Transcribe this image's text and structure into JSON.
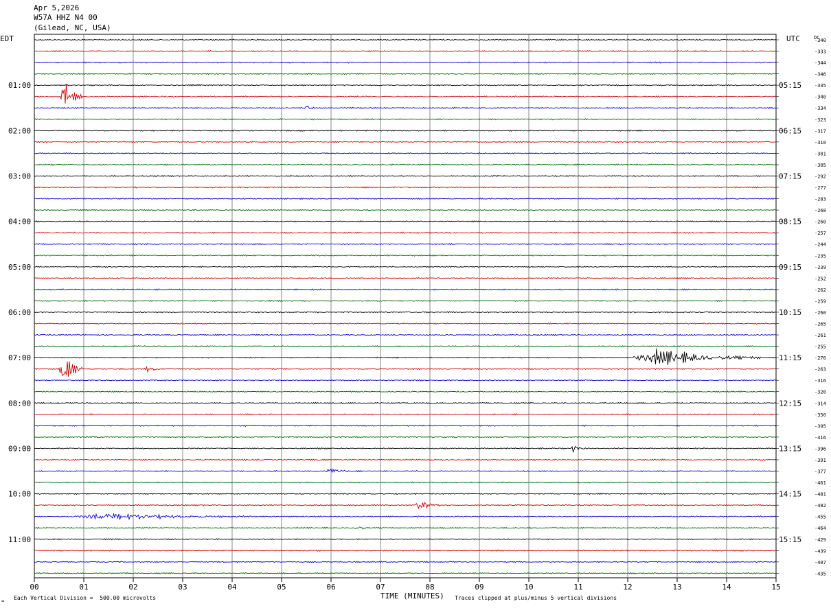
{
  "header": {
    "date": "Apr 5,2026",
    "station": "W57A HHZ N4 00",
    "location": "(Gilead, NC, USA)"
  },
  "left_axis_label": "EDT",
  "right_axis_label": "UTC",
  "dc_label": "DC",
  "footer": {
    "left": "Each Vertical Division =  500.00 microvolts",
    "right": "Traces clipped at plus/minus 5 vertical divisions",
    "corner": "≈"
  },
  "chart_data": {
    "type": "line",
    "xlabel": "TIME (MINUTES)",
    "xlim": [
      0,
      15
    ],
    "x_ticks": [
      "00",
      "01",
      "02",
      "03",
      "04",
      "05",
      "06",
      "07",
      "08",
      "09",
      "10",
      "11",
      "12",
      "13",
      "14",
      "15"
    ],
    "trace_colors": [
      "#000000",
      "#cc0000",
      "#0000cc",
      "#006400"
    ],
    "rows": 48,
    "left_hour_labels": [
      "01:00",
      "02:00",
      "03:00",
      "04:00",
      "05:00",
      "06:00",
      "07:00",
      "08:00",
      "09:00",
      "10:00",
      "11:00"
    ],
    "right_hour_labels": [
      "05:15",
      "06:15",
      "07:15",
      "08:15",
      "09:15",
      "10:15",
      "11:15",
      "12:15",
      "13:15",
      "14:15",
      "15:15"
    ],
    "dc_values": [
      "-340",
      "-333",
      "-344",
      "-346",
      "-335",
      "-340",
      "-334",
      "-323",
      "-317",
      "-310",
      "-301",
      "-305",
      "-292",
      "-277",
      "-283",
      "-268",
      "-260",
      "-257",
      "-244",
      "-235",
      "-239",
      "-252",
      "-262",
      "-259",
      "-260",
      "-265",
      "-261",
      "-255",
      "-270",
      "-263",
      "-316",
      "-320",
      "-314",
      "-350",
      "-395",
      "-416",
      "-396",
      "-391",
      "-377",
      "-461",
      "-481",
      "-482",
      "-455",
      "-464",
      "-429",
      "-439",
      "-407",
      "-435"
    ],
    "events": [
      {
        "row": 5,
        "minute": 0.6,
        "amplitude": 4.5,
        "duration": 0.3
      },
      {
        "row": 6,
        "minute": 5.5,
        "amplitude": 1.0,
        "duration": 0.15
      },
      {
        "row": 28,
        "minute": 12.6,
        "amplitude": 2.0,
        "duration": 1.8
      },
      {
        "row": 29,
        "minute": 0.6,
        "amplitude": 4.5,
        "duration": 0.35
      },
      {
        "row": 29,
        "minute": 2.3,
        "amplitude": 0.6,
        "duration": 0.3
      },
      {
        "row": 36,
        "minute": 10.9,
        "amplitude": 1.0,
        "duration": 0.2
      },
      {
        "row": 38,
        "minute": 6.0,
        "amplitude": 0.8,
        "duration": 0.4
      },
      {
        "row": 41,
        "minute": 7.8,
        "amplitude": 1.4,
        "duration": 0.4
      },
      {
        "row": 42,
        "minute": 1.5,
        "amplitude": 0.8,
        "duration": 2.5
      },
      {
        "row": 43,
        "minute": 6.5,
        "amplitude": 1.0,
        "duration": 0.2
      }
    ]
  }
}
